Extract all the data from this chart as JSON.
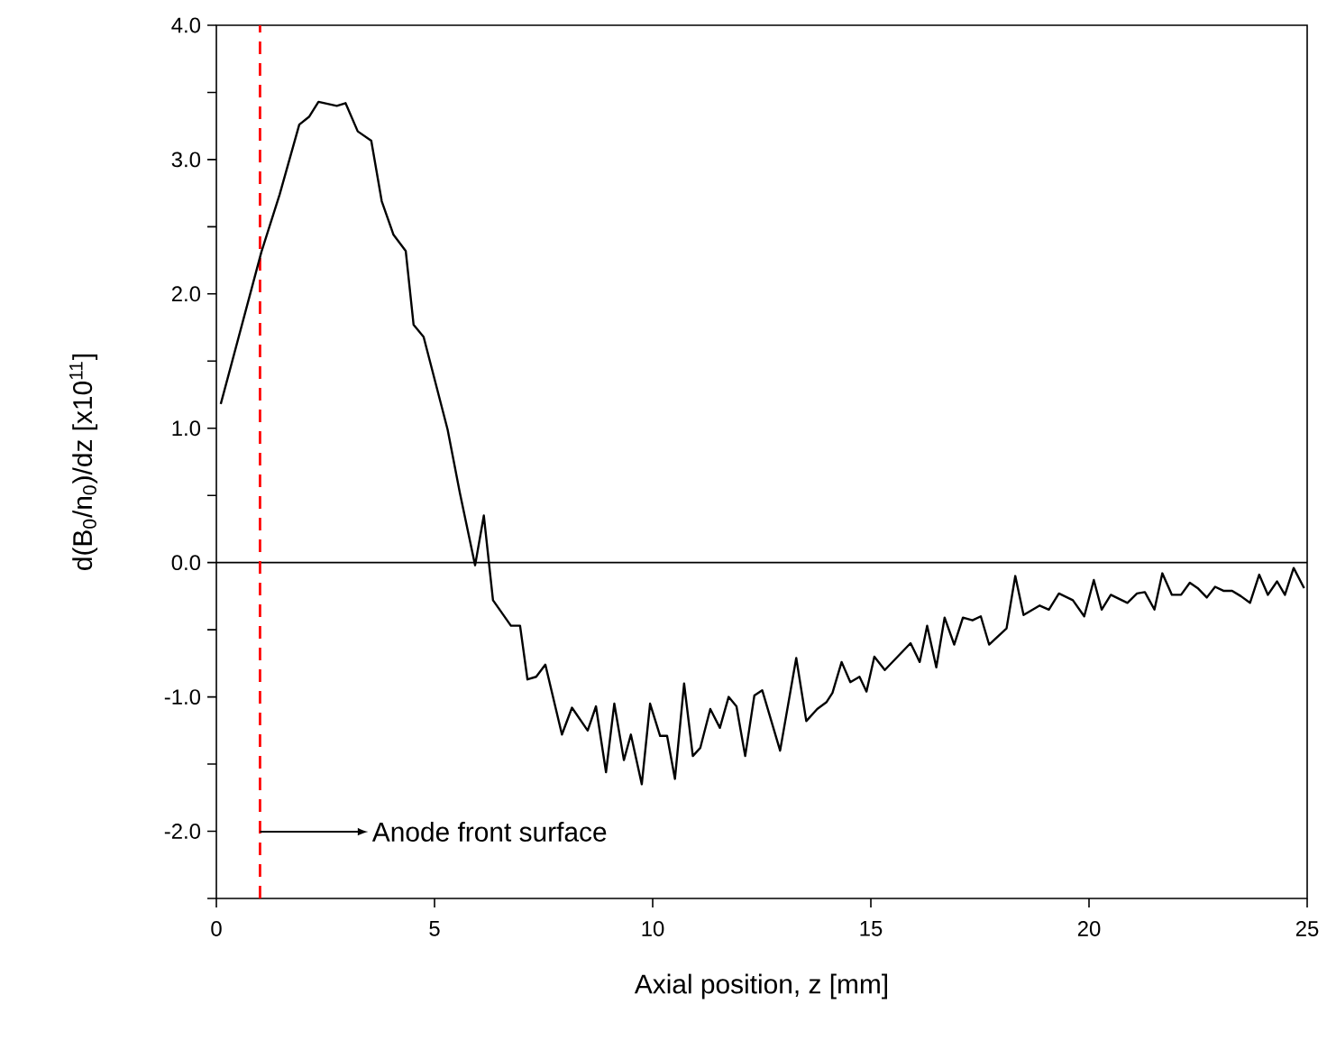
{
  "chart_data": {
    "type": "line",
    "xlabel": "Axial position, z [mm]",
    "ylabel": "d(B$_{0}$/n$_{0}$)/dz [x10$^{11}$]",
    "xlim": [
      0,
      25
    ],
    "ylim": [
      -2.5,
      4.0
    ],
    "xticks": [
      0,
      5,
      10,
      15,
      20,
      25
    ],
    "yticks": [
      {
        "value": -2.5,
        "label": null
      },
      {
        "value": -2.0,
        "label": "-2.0"
      },
      {
        "value": -1.5,
        "label": null
      },
      {
        "value": -1.0,
        "label": "-1.0"
      },
      {
        "value": -0.5,
        "label": null
      },
      {
        "value": 0.0,
        "label": "0.0"
      },
      {
        "value": 0.5,
        "label": null
      },
      {
        "value": 1.0,
        "label": "1.0"
      },
      {
        "value": 1.5,
        "label": null
      },
      {
        "value": 2.0,
        "label": "2.0"
      },
      {
        "value": 2.5,
        "label": null
      },
      {
        "value": 3.0,
        "label": "3.0"
      },
      {
        "value": 3.5,
        "label": null
      },
      {
        "value": 4.0,
        "label": "4.0"
      }
    ],
    "grid": false,
    "marker": "none",
    "line_style": "solid",
    "ref_lines": [
      {
        "axis": "y",
        "value": 0,
        "color": "#000000",
        "line_style": "solid"
      },
      {
        "axis": "x",
        "value": 1,
        "color": "#ff0000",
        "line_style": "dashed"
      }
    ],
    "annotations": [
      "Anode front surface"
    ],
    "series": [
      {
        "color": "#000000",
        "x": [
          0.1,
          1.03,
          1.45,
          1.9,
          2.13,
          2.34,
          2.76,
          2.96,
          3.24,
          3.55,
          3.79,
          4.06,
          4.34,
          4.52,
          4.75,
          5.3,
          5.58,
          5.93,
          6.13,
          6.34,
          6.75,
          6.96,
          7.13,
          7.33,
          7.54,
          7.92,
          8.15,
          8.51,
          8.7,
          8.93,
          9.12,
          9.34,
          9.5,
          9.75,
          9.94,
          10.17,
          10.33,
          10.51,
          10.72,
          10.92,
          11.09,
          11.32,
          11.54,
          11.74,
          11.92,
          12.12,
          12.33,
          12.51,
          12.92,
          13.29,
          13.52,
          13.77,
          13.98,
          14.12,
          14.33,
          14.53,
          14.74,
          14.9,
          15.08,
          15.32,
          15.91,
          16.12,
          16.29,
          16.5,
          16.69,
          16.91,
          17.11,
          17.33,
          17.52,
          17.71,
          18.11,
          18.31,
          18.5,
          18.87,
          19.08,
          19.31,
          19.63,
          19.89,
          20.11,
          20.29,
          20.5,
          20.88,
          21.1,
          21.28,
          21.5,
          21.68,
          21.9,
          22.11,
          22.31,
          22.49,
          22.7,
          22.89,
          23.08,
          23.28,
          23.48,
          23.69,
          23.9,
          24.1,
          24.31,
          24.49,
          24.69,
          24.93
        ],
        "values": [
          1.18,
          2.31,
          2.74,
          3.26,
          3.32,
          3.43,
          3.4,
          3.42,
          3.21,
          3.14,
          2.69,
          2.44,
          2.32,
          1.77,
          1.68,
          0.99,
          0.52,
          -0.02,
          0.35,
          -0.28,
          -0.47,
          -0.47,
          -0.87,
          -0.85,
          -0.76,
          -1.28,
          -1.08,
          -1.25,
          -1.07,
          -1.56,
          -1.05,
          -1.47,
          -1.28,
          -1.65,
          -1.05,
          -1.29,
          -1.29,
          -1.61,
          -0.9,
          -1.44,
          -1.38,
          -1.09,
          -1.23,
          -1.0,
          -1.07,
          -1.44,
          -0.99,
          -0.95,
          -1.4,
          -0.71,
          -1.18,
          -1.09,
          -1.04,
          -0.97,
          -0.74,
          -0.89,
          -0.85,
          -0.96,
          -0.7,
          -0.8,
          -0.6,
          -0.74,
          -0.47,
          -0.78,
          -0.41,
          -0.61,
          -0.41,
          -0.43,
          -0.4,
          -0.61,
          -0.49,
          -0.1,
          -0.39,
          -0.32,
          -0.35,
          -0.23,
          -0.28,
          -0.4,
          -0.13,
          -0.35,
          -0.24,
          -0.3,
          -0.23,
          -0.22,
          -0.35,
          -0.08,
          -0.24,
          -0.24,
          -0.15,
          -0.19,
          -0.26,
          -0.18,
          -0.21,
          -0.21,
          -0.25,
          -0.3,
          -0.09,
          -0.24,
          -0.14,
          -0.24,
          -0.04,
          -0.19
        ]
      }
    ]
  }
}
